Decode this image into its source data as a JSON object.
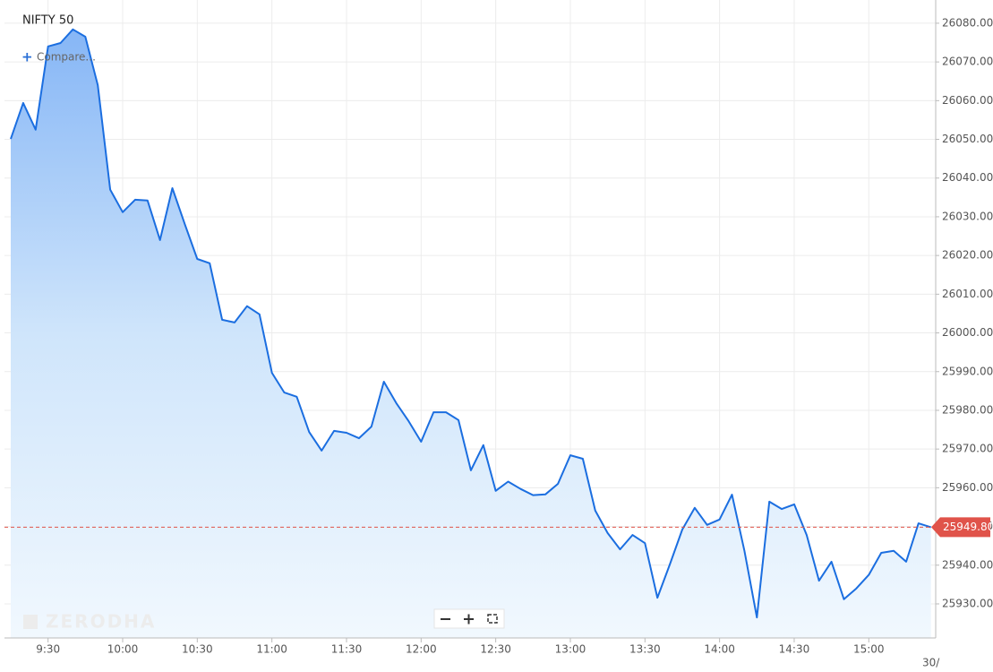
{
  "chart_data": {
    "type": "area",
    "title": "NIFTY 50",
    "compare_label": "Compare...",
    "watermark": "ZERODHA",
    "date_label": "30/",
    "color": "#1b6ee0",
    "grid": true,
    "categories": [
      null,
      null,
      null,
      "9:30",
      null,
      null,
      null,
      null,
      null,
      "10:00",
      null,
      null,
      null,
      null,
      null,
      "10:30",
      null,
      null,
      null,
      null,
      null,
      "11:00",
      null,
      null,
      null,
      null,
      null,
      "11:30",
      null,
      null,
      null,
      null,
      null,
      "12:00",
      null,
      null,
      null,
      null,
      null,
      "12:30",
      null,
      null,
      null,
      null,
      null,
      "13:00",
      null,
      null,
      null,
      null,
      null,
      "13:30",
      null,
      null,
      null,
      null,
      null,
      "14:00",
      null,
      null,
      null,
      null,
      null,
      "14:30",
      null,
      null,
      null,
      null,
      null,
      "15:00",
      null,
      null,
      null,
      null,
      null
    ],
    "values": [
      26050.1,
      26059.4,
      26052.5,
      26074.0,
      26074.9,
      26078.4,
      26076.5,
      26064.0,
      26037.0,
      26031.2,
      26034.4,
      26034.2,
      26024.0,
      26037.4,
      26028.1,
      26019.1,
      26018.0,
      26003.4,
      26002.7,
      26006.9,
      26004.8,
      25989.7,
      25984.6,
      25983.5,
      25974.4,
      25969.6,
      25974.7,
      25974.2,
      25972.8,
      25975.8,
      25987.4,
      25981.9,
      25977.2,
      25971.9,
      25979.5,
      25979.5,
      25977.5,
      25964.5,
      25971.0,
      25959.2,
      25961.6,
      25959.7,
      25958.1,
      25958.3,
      25961.0,
      25968.4,
      25967.5,
      25954.1,
      25948.3,
      25944.1,
      25947.8,
      25945.7,
      25931.6,
      25940.2,
      25949.2,
      25954.8,
      25950.4,
      25951.8,
      25958.2,
      25943.7,
      25926.5,
      25956.4,
      25954.5,
      25955.7,
      25947.8,
      25936.0,
      25940.9,
      25931.2,
      25934.0,
      25937.5,
      25943.2,
      25943.7,
      25940.9,
      25950.8,
      25949.8
    ],
    "last_price": {
      "value": 25949.8,
      "label": "25949.80"
    },
    "ylim": [
      25921.2,
      26086.0
    ],
    "yticks": [
      {
        "value": 25930,
        "label": "25930.00"
      },
      {
        "value": 25940,
        "label": "25940.00"
      },
      {
        "value": 25950,
        "label": "25950.00"
      },
      {
        "value": 25960,
        "label": "25960.00"
      },
      {
        "value": 25970,
        "label": "25970.00"
      },
      {
        "value": 25980,
        "label": "25980.00"
      },
      {
        "value": 25990,
        "label": "25990.00"
      },
      {
        "value": 26000,
        "label": "26000.00"
      },
      {
        "value": 26010,
        "label": "26010.00"
      },
      {
        "value": 26020,
        "label": "26020.00"
      },
      {
        "value": 26030,
        "label": "26030.00"
      },
      {
        "value": 26040,
        "label": "26040.00"
      },
      {
        "value": 26050,
        "label": "26050.00"
      },
      {
        "value": 26060,
        "label": "26060.00"
      },
      {
        "value": 26070,
        "label": "26070.00"
      },
      {
        "value": 26080,
        "label": "26080.00"
      }
    ]
  }
}
